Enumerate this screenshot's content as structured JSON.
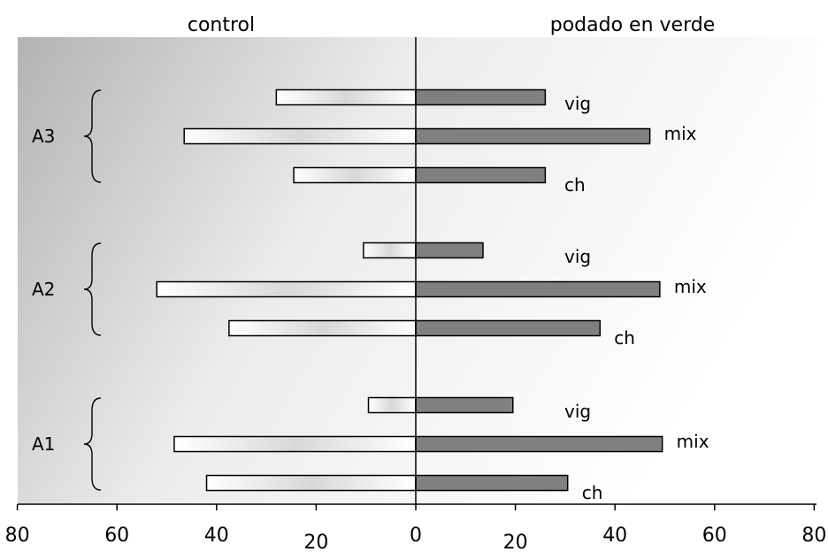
{
  "chart_data": {
    "type": "bar",
    "orientation": "horizontal-diverging",
    "left_header": "control",
    "right_header": "podado en verde",
    "xlim": [
      -80,
      80
    ],
    "x_tick_labels": [
      "80",
      "60",
      "40",
      "20",
      "0",
      "20",
      "40",
      "60",
      "80"
    ],
    "x_tick_values": [
      -80,
      -60,
      -40,
      -20,
      0,
      20,
      40,
      60,
      80
    ],
    "groups": [
      {
        "name": "A3",
        "categories": [
          {
            "label": "vig",
            "control": 28,
            "podado": 26
          },
          {
            "label": "mix",
            "control": 46.5,
            "podado": 47
          },
          {
            "label": "ch",
            "control": 24.5,
            "podado": 26
          }
        ]
      },
      {
        "name": "A2",
        "categories": [
          {
            "label": "vig",
            "control": 10.5,
            "podado": 13.5
          },
          {
            "label": "mix",
            "control": 52,
            "podado": 49
          },
          {
            "label": "ch",
            "control": 37.5,
            "podado": 37
          }
        ]
      },
      {
        "name": "A1",
        "categories": [
          {
            "label": "vig",
            "control": 9.5,
            "podado": 19.5
          },
          {
            "label": "mix",
            "control": 48.5,
            "podado": 49.5
          },
          {
            "label": "ch",
            "control": 42,
            "podado": 30.5
          }
        ]
      }
    ],
    "colors": {
      "control": "#ffffff",
      "podado": "#808080"
    },
    "grid": false
  }
}
